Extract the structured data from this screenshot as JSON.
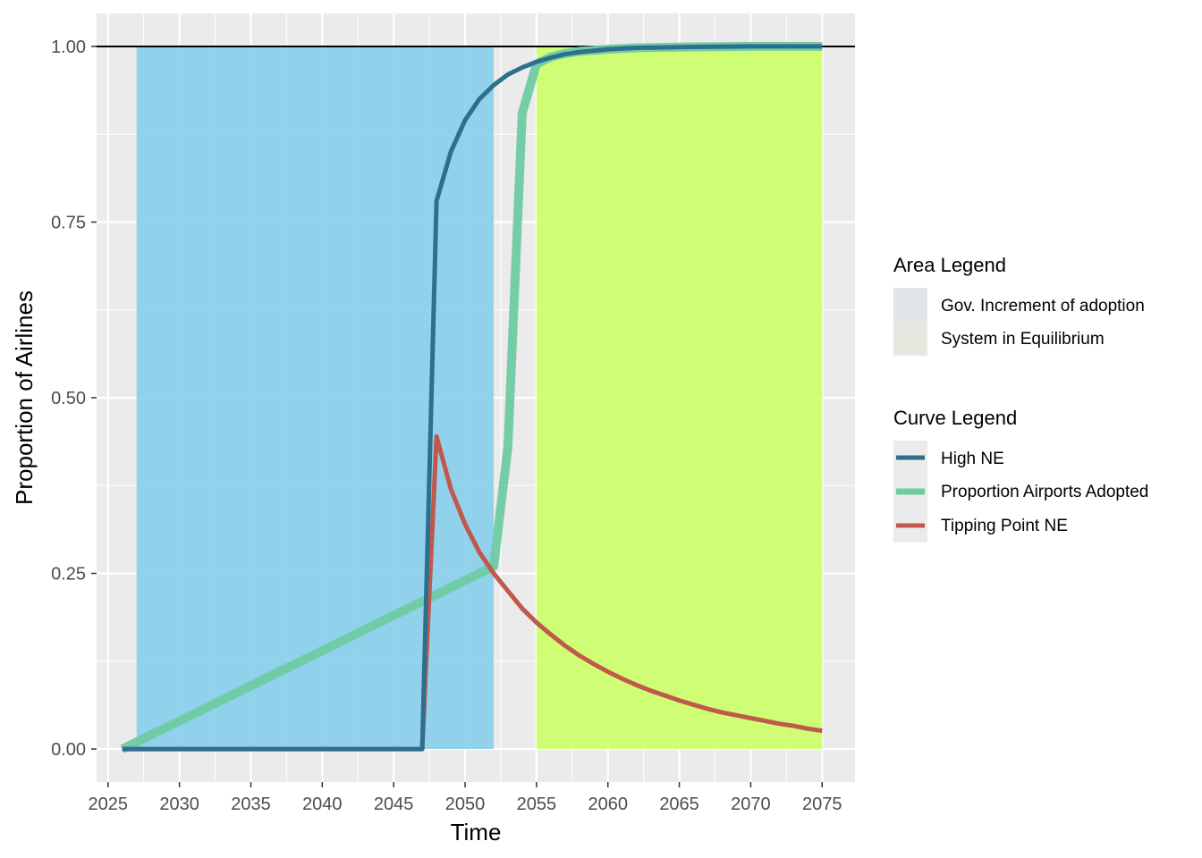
{
  "chart_data": {
    "type": "line",
    "xlabel": "Time",
    "ylabel": "Proportion of Airlines",
    "xlim": [
      2024.2,
      2077.3
    ],
    "ylim": [
      -0.047,
      1.047
    ],
    "x_ticks": [
      2025,
      2030,
      2035,
      2040,
      2045,
      2050,
      2055,
      2060,
      2065,
      2070,
      2075
    ],
    "y_ticks": [
      0.0,
      0.25,
      0.5,
      0.75,
      1.0
    ],
    "y_tick_labels": [
      "0.00",
      "0.25",
      "0.50",
      "0.75",
      "1.00"
    ],
    "grid": true,
    "reference_line": {
      "y": 1.0,
      "color": "#000000"
    },
    "areas": [
      {
        "name": "Gov. Increment of adoption",
        "x_start": 2027,
        "x_end": 2052,
        "y_start": 0,
        "y_end": 1,
        "color": "#87CEEB",
        "legend_swatch": "#e1e5e8"
      },
      {
        "name": "System in Equilibrium",
        "x_start": 2055,
        "x_end": 2075,
        "y_start": 0,
        "y_end": 1,
        "color": "#ccff66",
        "legend_swatch": "#e7e9e1"
      }
    ],
    "series": [
      {
        "name": "High NE",
        "color": "#2e6f8e",
        "x": [
          2026,
          2047,
          2048,
          2049,
          2050,
          2051,
          2052,
          2053,
          2054,
          2055,
          2056,
          2057,
          2058,
          2059,
          2060,
          2062,
          2065,
          2070,
          2075
        ],
        "values": [
          0,
          0,
          0.78,
          0.85,
          0.895,
          0.925,
          0.945,
          0.96,
          0.97,
          0.978,
          0.984,
          0.989,
          0.992,
          0.994,
          0.996,
          0.998,
          0.999,
          1.0,
          1.0
        ]
      },
      {
        "name": "Proportion Airports Adopted",
        "color": "#6fcba3",
        "x": [
          2026,
          2052,
          2053,
          2054,
          2055,
          2056,
          2057,
          2058,
          2060,
          2062,
          2065,
          2070,
          2075
        ],
        "values": [
          0,
          0.26,
          0.43,
          0.905,
          0.975,
          0.985,
          0.99,
          0.993,
          0.996,
          0.998,
          0.999,
          1.0,
          1.0
        ]
      },
      {
        "name": "Tipping Point NE",
        "color": "#c0594b",
        "x": [
          2026,
          2047,
          2048,
          2049,
          2050,
          2051,
          2052,
          2053,
          2054,
          2055,
          2056,
          2057,
          2058,
          2059,
          2060,
          2061,
          2062,
          2063,
          2064,
          2065,
          2066,
          2067,
          2068,
          2069,
          2070,
          2071,
          2072,
          2073,
          2074,
          2075
        ],
        "values": [
          0,
          0,
          0.445,
          0.37,
          0.32,
          0.28,
          0.25,
          0.225,
          0.2,
          0.18,
          0.163,
          0.147,
          0.133,
          0.121,
          0.11,
          0.1,
          0.091,
          0.083,
          0.076,
          0.069,
          0.063,
          0.057,
          0.052,
          0.048,
          0.044,
          0.04,
          0.036,
          0.033,
          0.029,
          0.026
        ]
      }
    ],
    "legends": {
      "area": {
        "title": "Area Legend",
        "items": [
          "Gov. Increment of adoption",
          "System in Equilibrium"
        ]
      },
      "curve": {
        "title": "Curve Legend",
        "items": [
          "High NE",
          "Proportion Airports Adopted",
          "Tipping Point NE"
        ]
      }
    }
  }
}
